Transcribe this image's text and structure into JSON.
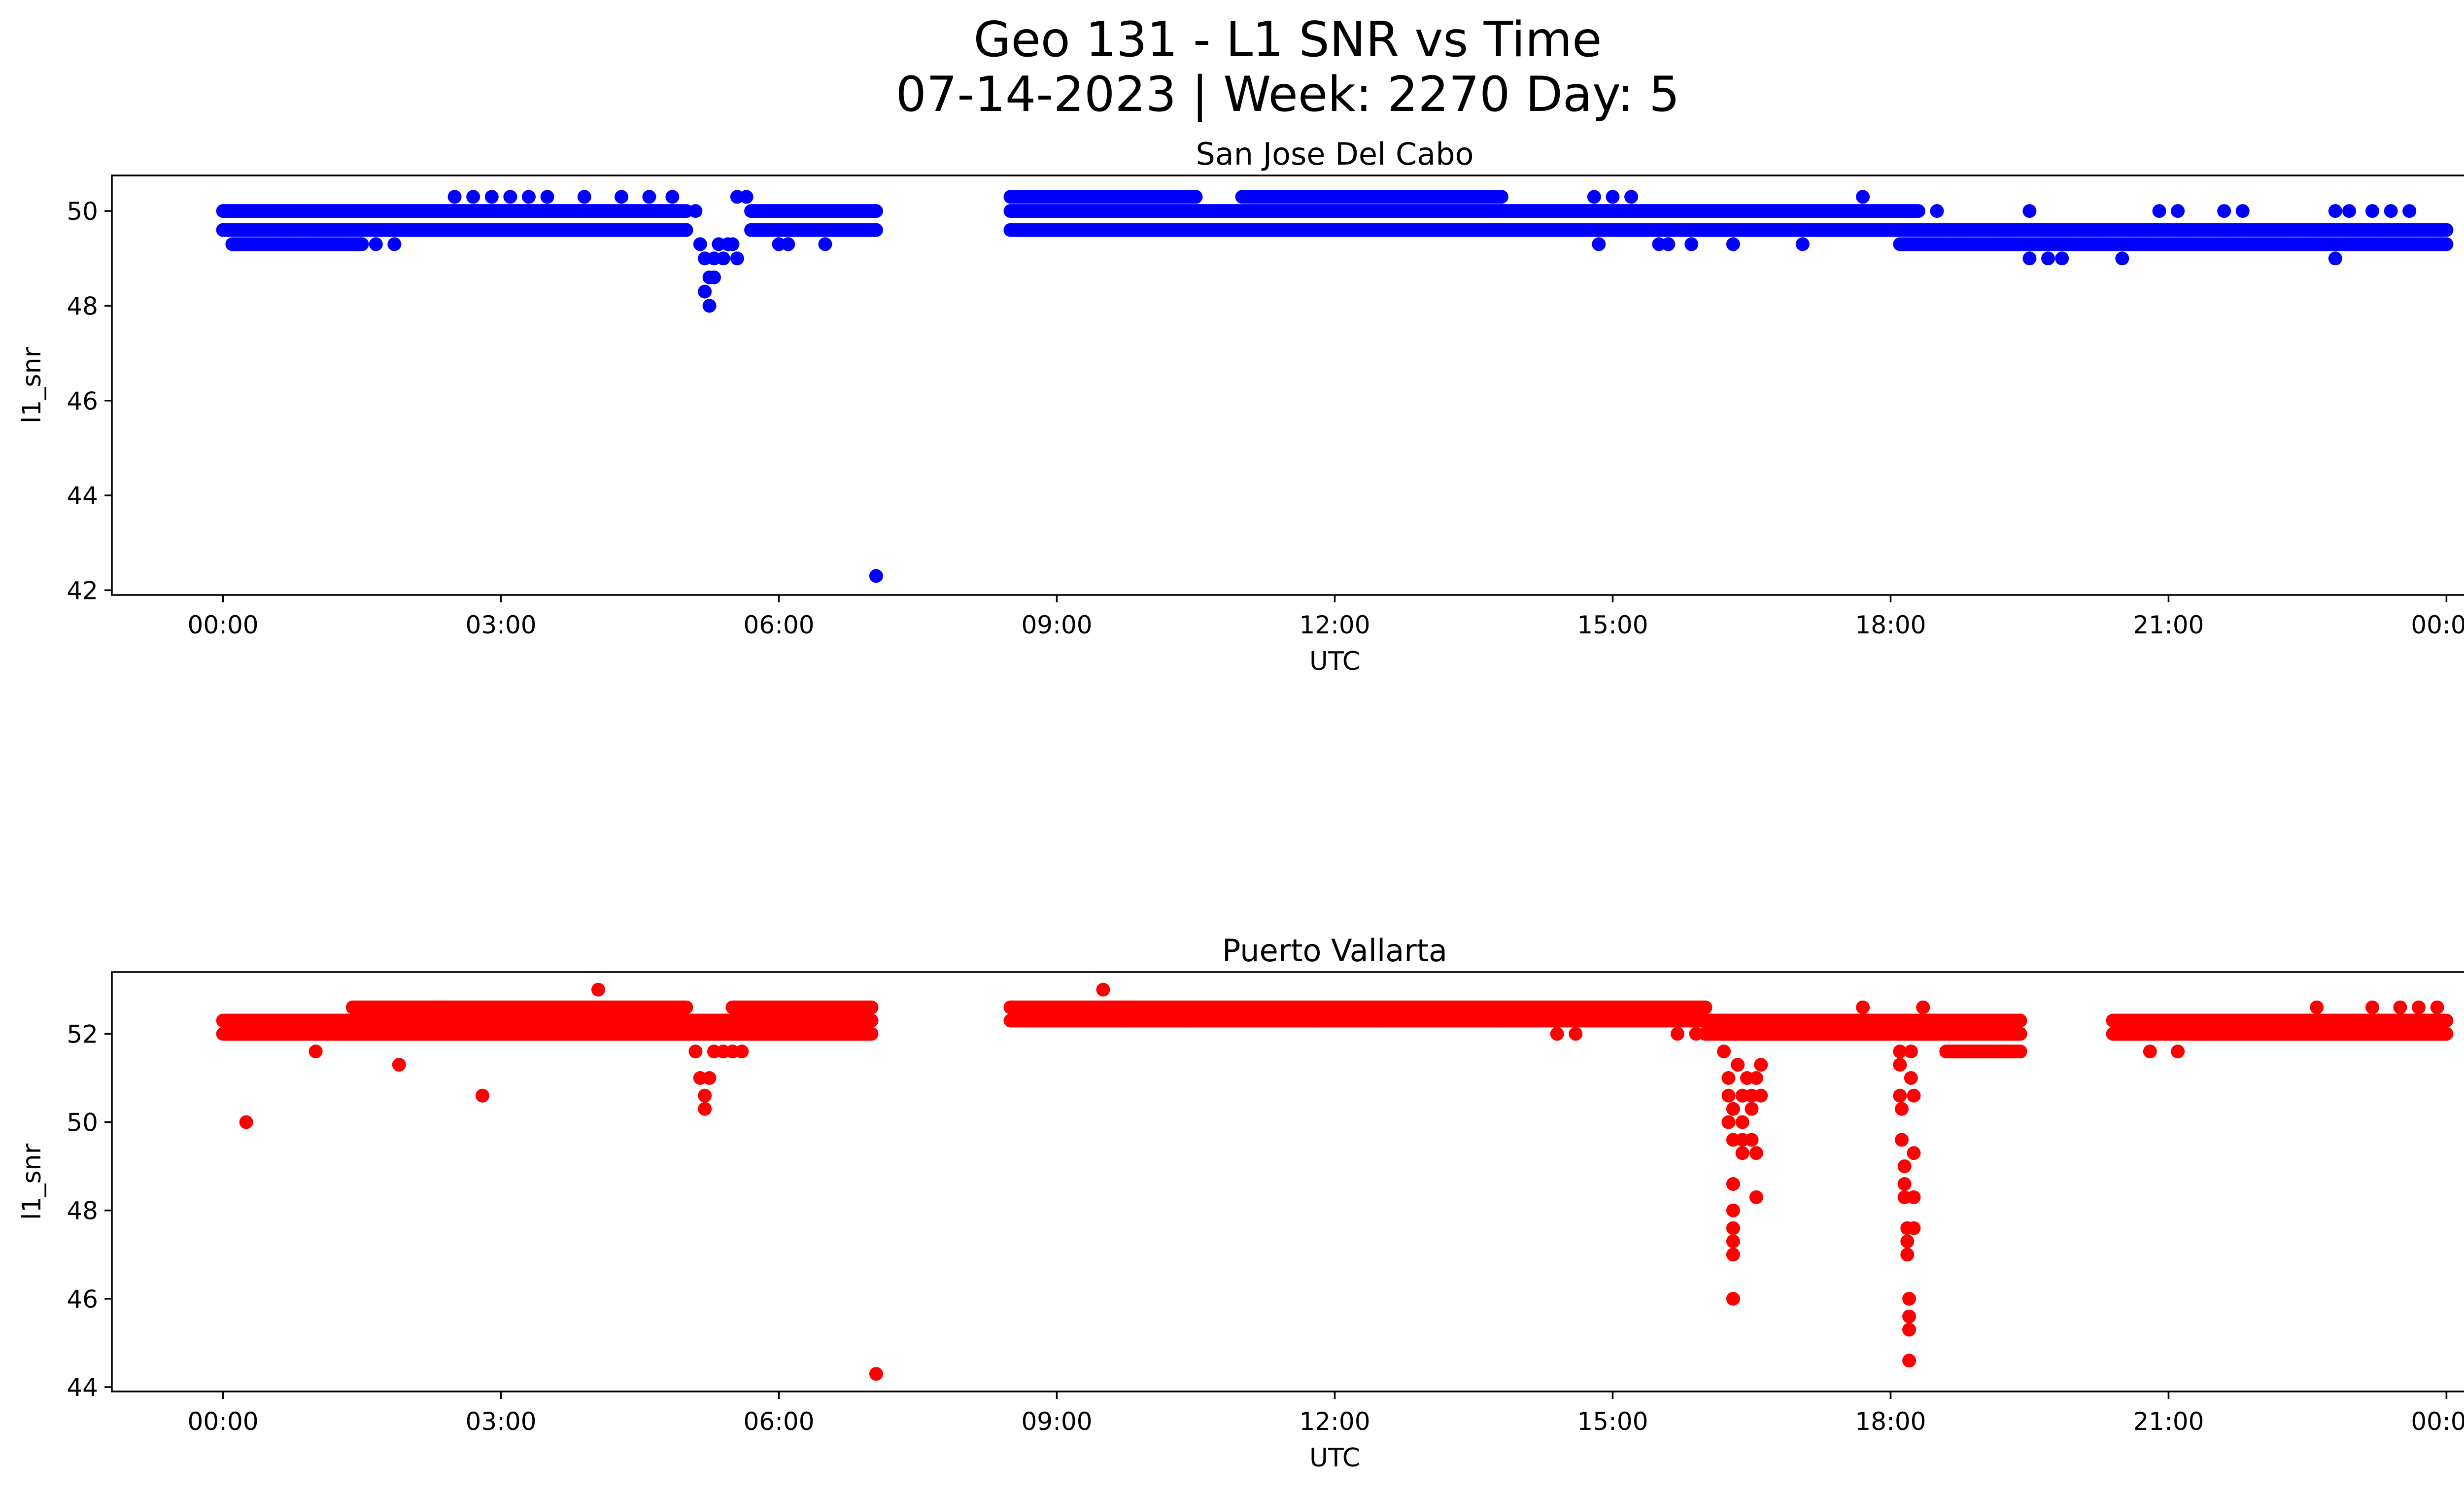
{
  "figure": {
    "title_line1": "Geo 131 - L1 SNR vs Time",
    "title_line2": "07-14-2023 | Week: 2270 Day: 5"
  },
  "chart_data": [
    {
      "type": "scatter",
      "title": "San Jose Del Cabo",
      "xlabel": "UTC",
      "ylabel": "l1_snr",
      "color": "#0000ff",
      "x_unit": "hours UTC",
      "xlim": [
        -1.2,
        25.2
      ],
      "ylim": [
        41.9,
        50.75
      ],
      "xticks": [
        "00:00",
        "03:00",
        "06:00",
        "09:00",
        "12:00",
        "15:00",
        "18:00",
        "21:00",
        "00:00"
      ],
      "yticks": [
        42,
        44,
        46,
        48,
        50
      ],
      "grid": false,
      "segments": [
        {
          "from": 0.0,
          "to": 5.0,
          "values": [
            49.6,
            50.0
          ]
        },
        {
          "from": 5.7,
          "to": 7.05,
          "values": [
            49.6,
            50.0
          ]
        },
        {
          "from": 0.1,
          "to": 1.5,
          "values": [
            49.3
          ]
        },
        {
          "from": 8.5,
          "to": 18.3,
          "values": [
            49.6,
            50.0
          ]
        },
        {
          "from": 8.5,
          "to": 10.5,
          "values": [
            50.3
          ]
        },
        {
          "from": 11.0,
          "to": 13.8,
          "values": [
            50.3
          ]
        },
        {
          "from": 18.1,
          "to": 24.0,
          "values": [
            49.3,
            49.6
          ]
        }
      ],
      "points": [
        {
          "x": 0.05,
          "y": 50.0
        },
        {
          "x": 0.25,
          "y": 50.0
        },
        {
          "x": 0.35,
          "y": 50.0
        },
        {
          "x": 0.5,
          "y": 50.0
        },
        {
          "x": 0.95,
          "y": 50.0
        },
        {
          "x": 1.2,
          "y": 50.0
        },
        {
          "x": 1.3,
          "y": 50.0
        },
        {
          "x": 1.6,
          "y": 50.0
        },
        {
          "x": 1.8,
          "y": 50.0
        },
        {
          "x": 1.65,
          "y": 49.3
        },
        {
          "x": 1.85,
          "y": 49.3
        },
        {
          "x": 2.5,
          "y": 50.3
        },
        {
          "x": 2.7,
          "y": 50.3
        },
        {
          "x": 2.9,
          "y": 50.3
        },
        {
          "x": 3.1,
          "y": 50.3
        },
        {
          "x": 3.3,
          "y": 50.3
        },
        {
          "x": 3.5,
          "y": 50.3
        },
        {
          "x": 3.9,
          "y": 50.3
        },
        {
          "x": 4.3,
          "y": 50.3
        },
        {
          "x": 4.6,
          "y": 50.3
        },
        {
          "x": 4.85,
          "y": 50.3
        },
        {
          "x": 5.1,
          "y": 50.0
        },
        {
          "x": 5.15,
          "y": 49.3
        },
        {
          "x": 5.2,
          "y": 49.0
        },
        {
          "x": 5.25,
          "y": 48.6
        },
        {
          "x": 5.2,
          "y": 48.3
        },
        {
          "x": 5.25,
          "y": 48.0
        },
        {
          "x": 5.3,
          "y": 48.6
        },
        {
          "x": 5.3,
          "y": 49.0
        },
        {
          "x": 5.35,
          "y": 49.3
        },
        {
          "x": 5.4,
          "y": 49.0
        },
        {
          "x": 5.45,
          "y": 49.3
        },
        {
          "x": 5.5,
          "y": 49.3
        },
        {
          "x": 5.55,
          "y": 49.0
        },
        {
          "x": 5.55,
          "y": 50.3
        },
        {
          "x": 5.65,
          "y": 50.3
        },
        {
          "x": 6.0,
          "y": 49.3
        },
        {
          "x": 6.1,
          "y": 49.3
        },
        {
          "x": 6.5,
          "y": 49.3
        },
        {
          "x": 7.05,
          "y": 42.3
        },
        {
          "x": 9.5,
          "y": 50.3
        },
        {
          "x": 10.4,
          "y": 50.3
        },
        {
          "x": 11.4,
          "y": 49.6
        },
        {
          "x": 11.8,
          "y": 49.6
        },
        {
          "x": 12.2,
          "y": 49.6
        },
        {
          "x": 12.4,
          "y": 49.6
        },
        {
          "x": 12.65,
          "y": 49.6
        },
        {
          "x": 14.8,
          "y": 50.3
        },
        {
          "x": 15.0,
          "y": 50.3
        },
        {
          "x": 15.2,
          "y": 50.3
        },
        {
          "x": 14.85,
          "y": 49.3
        },
        {
          "x": 15.5,
          "y": 49.3
        },
        {
          "x": 15.6,
          "y": 49.3
        },
        {
          "x": 15.85,
          "y": 49.3
        },
        {
          "x": 16.3,
          "y": 49.3
        },
        {
          "x": 17.05,
          "y": 49.3
        },
        {
          "x": 17.7,
          "y": 50.3
        },
        {
          "x": 18.5,
          "y": 50.0
        },
        {
          "x": 19.5,
          "y": 50.0
        },
        {
          "x": 19.5,
          "y": 49.0
        },
        {
          "x": 19.7,
          "y": 49.0
        },
        {
          "x": 19.85,
          "y": 49.0
        },
        {
          "x": 20.5,
          "y": 49.0
        },
        {
          "x": 20.9,
          "y": 50.0
        },
        {
          "x": 21.1,
          "y": 50.0
        },
        {
          "x": 21.6,
          "y": 50.0
        },
        {
          "x": 21.8,
          "y": 50.0
        },
        {
          "x": 22.8,
          "y": 50.0
        },
        {
          "x": 22.95,
          "y": 50.0
        },
        {
          "x": 22.8,
          "y": 49.0
        },
        {
          "x": 23.2,
          "y": 50.0
        },
        {
          "x": 23.4,
          "y": 50.0
        },
        {
          "x": 23.6,
          "y": 50.0
        }
      ]
    },
    {
      "type": "scatter",
      "title": "Puerto Vallarta",
      "xlabel": "UTC",
      "ylabel": "l1_snr",
      "color": "#ff0000",
      "x_unit": "hours UTC",
      "xlim": [
        -1.2,
        25.2
      ],
      "ylim": [
        43.9,
        53.4
      ],
      "xticks": [
        "00:00",
        "03:00",
        "06:00",
        "09:00",
        "12:00",
        "15:00",
        "18:00",
        "21:00",
        "00:00"
      ],
      "yticks": [
        44,
        46,
        48,
        50,
        52
      ],
      "grid": false,
      "segments": [
        {
          "from": 0.0,
          "to": 7.0,
          "values": [
            52.0,
            52.3
          ]
        },
        {
          "from": 1.4,
          "to": 5.0,
          "values": [
            52.6
          ]
        },
        {
          "from": 5.5,
          "to": 7.0,
          "values": [
            52.6
          ]
        },
        {
          "from": 8.5,
          "to": 16.0,
          "values": [
            52.3,
            52.6
          ]
        },
        {
          "from": 16.0,
          "to": 19.4,
          "values": [
            52.0,
            52.3
          ]
        },
        {
          "from": 18.6,
          "to": 19.4,
          "values": [
            51.6
          ]
        },
        {
          "from": 20.4,
          "to": 24.0,
          "values": [
            52.0,
            52.3
          ]
        }
      ],
      "points": [
        {
          "x": 0.25,
          "y": 50.0
        },
        {
          "x": 1.0,
          "y": 51.6
        },
        {
          "x": 1.9,
          "y": 51.3
        },
        {
          "x": 2.8,
          "y": 50.6
        },
        {
          "x": 1.85,
          "y": 52.0
        },
        {
          "x": 2.4,
          "y": 52.0
        },
        {
          "x": 2.8,
          "y": 52.0
        },
        {
          "x": 3.1,
          "y": 52.0
        },
        {
          "x": 3.7,
          "y": 52.0
        },
        {
          "x": 3.9,
          "y": 52.0
        },
        {
          "x": 4.4,
          "y": 52.0
        },
        {
          "x": 4.05,
          "y": 53.0
        },
        {
          "x": 5.1,
          "y": 51.6
        },
        {
          "x": 5.15,
          "y": 51.0
        },
        {
          "x": 5.2,
          "y": 50.6
        },
        {
          "x": 5.2,
          "y": 50.3
        },
        {
          "x": 5.25,
          "y": 51.0
        },
        {
          "x": 5.3,
          "y": 51.6
        },
        {
          "x": 5.4,
          "y": 51.6
        },
        {
          "x": 5.5,
          "y": 51.6
        },
        {
          "x": 5.6,
          "y": 51.6
        },
        {
          "x": 5.75,
          "y": 52.0
        },
        {
          "x": 6.0,
          "y": 52.0
        },
        {
          "x": 6.35,
          "y": 52.0
        },
        {
          "x": 7.05,
          "y": 44.3
        },
        {
          "x": 9.5,
          "y": 53.0
        },
        {
          "x": 14.4,
          "y": 52.0
        },
        {
          "x": 14.6,
          "y": 52.0
        },
        {
          "x": 15.7,
          "y": 52.0
        },
        {
          "x": 15.9,
          "y": 52.0
        },
        {
          "x": 16.2,
          "y": 51.6
        },
        {
          "x": 16.25,
          "y": 51.0
        },
        {
          "x": 16.25,
          "y": 50.6
        },
        {
          "x": 16.3,
          "y": 50.3
        },
        {
          "x": 16.25,
          "y": 50.0
        },
        {
          "x": 16.3,
          "y": 49.6
        },
        {
          "x": 16.3,
          "y": 48.6
        },
        {
          "x": 16.3,
          "y": 48.0
        },
        {
          "x": 16.3,
          "y": 47.6
        },
        {
          "x": 16.3,
          "y": 47.3
        },
        {
          "x": 16.3,
          "y": 47.0
        },
        {
          "x": 16.3,
          "y": 46.0
        },
        {
          "x": 16.35,
          "y": 51.3
        },
        {
          "x": 16.4,
          "y": 50.6
        },
        {
          "x": 16.4,
          "y": 50.0
        },
        {
          "x": 16.4,
          "y": 49.6
        },
        {
          "x": 16.4,
          "y": 49.3
        },
        {
          "x": 16.45,
          "y": 51.0
        },
        {
          "x": 16.5,
          "y": 50.6
        },
        {
          "x": 16.5,
          "y": 50.3
        },
        {
          "x": 16.5,
          "y": 49.6
        },
        {
          "x": 16.55,
          "y": 51.0
        },
        {
          "x": 16.55,
          "y": 49.3
        },
        {
          "x": 16.6,
          "y": 51.3
        },
        {
          "x": 16.6,
          "y": 50.6
        },
        {
          "x": 16.55,
          "y": 48.3
        },
        {
          "x": 18.1,
          "y": 51.6
        },
        {
          "x": 18.1,
          "y": 51.3
        },
        {
          "x": 18.1,
          "y": 50.6
        },
        {
          "x": 18.12,
          "y": 50.3
        },
        {
          "x": 18.12,
          "y": 49.6
        },
        {
          "x": 18.15,
          "y": 49.0
        },
        {
          "x": 18.15,
          "y": 48.6
        },
        {
          "x": 18.15,
          "y": 48.3
        },
        {
          "x": 18.18,
          "y": 47.6
        },
        {
          "x": 18.18,
          "y": 47.3
        },
        {
          "x": 18.18,
          "y": 47.0
        },
        {
          "x": 18.2,
          "y": 46.0
        },
        {
          "x": 18.2,
          "y": 45.6
        },
        {
          "x": 18.2,
          "y": 45.3
        },
        {
          "x": 18.2,
          "y": 44.6
        },
        {
          "x": 18.22,
          "y": 51.6
        },
        {
          "x": 18.22,
          "y": 51.0
        },
        {
          "x": 18.25,
          "y": 50.6
        },
        {
          "x": 18.25,
          "y": 49.3
        },
        {
          "x": 18.25,
          "y": 48.3
        },
        {
          "x": 18.25,
          "y": 47.6
        },
        {
          "x": 18.35,
          "y": 52.6
        },
        {
          "x": 17.7,
          "y": 52.6
        },
        {
          "x": 20.8,
          "y": 51.6
        },
        {
          "x": 21.1,
          "y": 51.6
        },
        {
          "x": 22.6,
          "y": 52.6
        },
        {
          "x": 23.2,
          "y": 52.6
        },
        {
          "x": 23.5,
          "y": 52.6
        },
        {
          "x": 23.7,
          "y": 52.6
        },
        {
          "x": 23.9,
          "y": 52.6
        }
      ]
    }
  ]
}
